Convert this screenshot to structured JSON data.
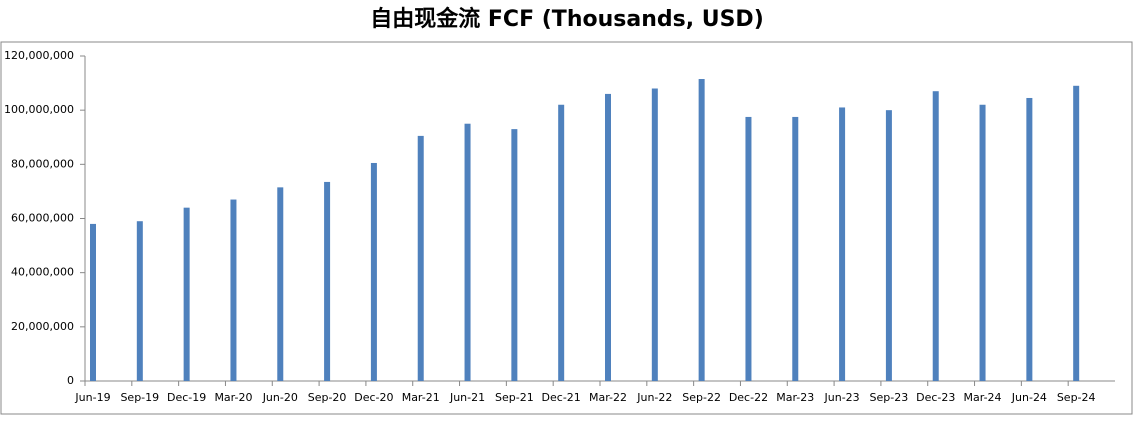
{
  "chart_data": {
    "type": "bar",
    "title": "自由现金流 FCF (Thousands, USD)",
    "categories": [
      "Jun-19",
      "Sep-19",
      "Dec-19",
      "Mar-20",
      "Jun-20",
      "Sep-20",
      "Dec-20",
      "Mar-21",
      "Jun-21",
      "Sep-21",
      "Dec-21",
      "Mar-22",
      "Jun-22",
      "Sep-22",
      "Dec-22",
      "Mar-23",
      "Jun-23",
      "Sep-23",
      "Dec-23",
      "Mar-24",
      "Jun-24",
      "Sep-24"
    ],
    "values": [
      58000000,
      59000000,
      64000000,
      67000000,
      71500000,
      73500000,
      80500000,
      90500000,
      95000000,
      93000000,
      102000000,
      106000000,
      108000000,
      111500000,
      97500000,
      97500000,
      101000000,
      100000000,
      107000000,
      102000000,
      104500000,
      109000000
    ],
    "color": "#4f81bd",
    "ylim": [
      0,
      120000000
    ],
    "yticks": [
      {
        "value": 0,
        "label": "0"
      },
      {
        "value": 20000000,
        "label": "20,000,000"
      },
      {
        "value": 40000000,
        "label": "40,000,000"
      },
      {
        "value": 60000000,
        "label": "60,000,000"
      },
      {
        "value": 80000000,
        "label": "80,000,000"
      },
      {
        "value": 100000000,
        "label": "100,000,000"
      },
      {
        "value": 120000000,
        "label": "120,000,000"
      }
    ],
    "grid": false
  }
}
